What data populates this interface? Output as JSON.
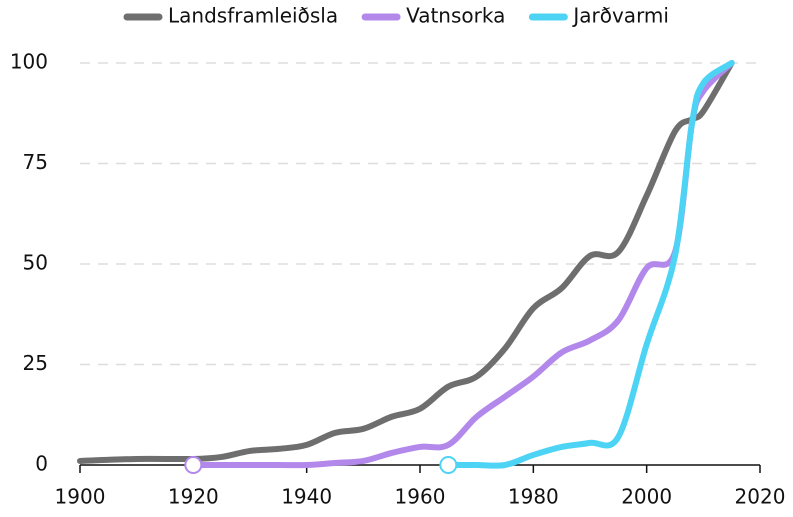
{
  "chart_data": {
    "type": "line",
    "x": [
      1900,
      1910,
      1920,
      1925,
      1930,
      1935,
      1940,
      1945,
      1950,
      1955,
      1960,
      1965,
      1970,
      1975,
      1980,
      1985,
      1990,
      1995,
      2000,
      2005,
      2008,
      2010,
      2015
    ],
    "series": [
      {
        "name": "Landsframleiðsla",
        "color": "#6e6e6e",
        "start_marker": false,
        "values": [
          1,
          1.5,
          1.5,
          2,
          3.5,
          4,
          5,
          8,
          9,
          12,
          14,
          19.5,
          22,
          29,
          39,
          44,
          52,
          53,
          67,
          83,
          86,
          88,
          100
        ]
      },
      {
        "name": "Vatnsorka",
        "color": "#b388eb",
        "start_marker": true,
        "values": [
          null,
          null,
          0,
          0,
          0,
          0,
          0,
          0.5,
          1,
          3,
          4.5,
          5,
          12,
          17,
          22,
          28,
          31,
          36,
          49,
          53,
          85,
          93,
          100
        ]
      },
      {
        "name": "Jarðvarmi",
        "color": "#4dd4f5",
        "start_marker": true,
        "values": [
          null,
          null,
          null,
          null,
          null,
          null,
          null,
          null,
          null,
          null,
          null,
          0,
          0,
          0,
          2.5,
          4.5,
          5.5,
          7,
          30,
          52,
          85,
          95,
          100
        ]
      }
    ],
    "xlim": [
      1900,
      2020
    ],
    "xticks": [
      1900,
      1920,
      1940,
      1960,
      1980,
      2000,
      2020
    ],
    "ylim": [
      0,
      100
    ],
    "yticks": [
      0,
      25,
      50,
      75,
      100
    ],
    "grid": true,
    "legend": "top"
  }
}
